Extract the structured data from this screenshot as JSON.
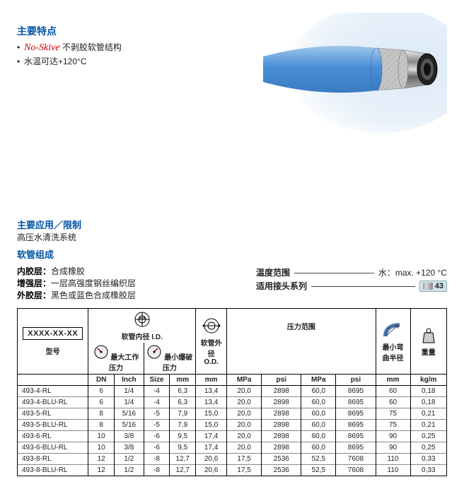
{
  "features": {
    "heading": "主要特点",
    "bullets": [
      {
        "prefix": "No-Skive",
        "text": " 不剥胶软管结构",
        "prefixClass": "no-skive"
      },
      {
        "prefix": "",
        "text": "水温可达+120°C"
      }
    ]
  },
  "application": {
    "heading": "主要应用／限制",
    "text": "高压水清洗系统"
  },
  "composition": {
    "heading": "软管组成",
    "inner": {
      "label": "内胶层：",
      "value": "合成橡胶"
    },
    "reinforce": {
      "label": "增强层：",
      "value": "一层高强度钢丝编织层"
    },
    "outer": {
      "label": "外胶层：",
      "value": "黑色或蓝色合成橡胶层"
    }
  },
  "temp": {
    "label": "温度范围",
    "value": "水：max. +120 °C"
  },
  "fittings": {
    "label": "适用接头系列",
    "value": "43"
  },
  "table": {
    "modelPlaceholder": "XXXX-XX-XX",
    "headers": {
      "model": "型号",
      "id": "软管内径 I.D.",
      "od": "软管外径\nO.D.",
      "pressure": "压力范围",
      "maxwork": "最大工作压力",
      "minburst": "最小爆破压力",
      "bend": "最小弯\n曲半径",
      "weight": "重量"
    },
    "units": [
      "DN",
      "Inch",
      "Size",
      "mm",
      "mm",
      "MPa",
      "psi",
      "MPa",
      "psi",
      "mm",
      "kg/m"
    ],
    "rows": [
      [
        "493-4-RL",
        "6",
        "1/4",
        "-4",
        "6,3",
        "13,4",
        "20,0",
        "2898",
        "60,0",
        "8695",
        "60",
        "0,18"
      ],
      [
        "493-4-BLU-RL",
        "6",
        "1/4",
        "-4",
        "6,3",
        "13,4",
        "20,0",
        "2898",
        "60,0",
        "8695",
        "60",
        "0,18"
      ],
      [
        "493-5-RL",
        "8",
        "5/16",
        "-5",
        "7,9",
        "15,0",
        "20,0",
        "2898",
        "60,0",
        "8695",
        "75",
        "0,21"
      ],
      [
        "493-5-BLU-RL",
        "8",
        "5/16",
        "-5",
        "7,9",
        "15,0",
        "20,0",
        "2898",
        "60,0",
        "8695",
        "75",
        "0,21"
      ],
      [
        "493-6-RL",
        "10",
        "3/8",
        "-6",
        "9,5",
        "17,4",
        "20,0",
        "2898",
        "60,0",
        "8695",
        "90",
        "0,25"
      ],
      [
        "493-6-BLU-RL",
        "10",
        "3/8",
        "-6",
        "9,5",
        "17,4",
        "20,0",
        "2898",
        "60,0",
        "8695",
        "90",
        "0,25"
      ],
      [
        "493-8-RL",
        "12",
        "1/2",
        "-8",
        "12,7",
        "20,6",
        "17,5",
        "2536",
        "52,5",
        "7608",
        "110",
        "0,33"
      ],
      [
        "493-8-BLU-RL",
        "12",
        "1/2",
        "-8",
        "12,7",
        "20,6",
        "17,5",
        "2536",
        "52,5",
        "7608",
        "110",
        "0,33"
      ]
    ],
    "colWidths": [
      "82",
      "30",
      "32",
      "30",
      "30",
      "36",
      "40",
      "46",
      "40",
      "46",
      "38",
      "40"
    ]
  },
  "colors": {
    "blue": "#0055a5",
    "red": "#c00",
    "hoseBlue": "#4a8fd6",
    "hoseBlueLight": "#9fc6ea",
    "steel": "#bbb"
  }
}
